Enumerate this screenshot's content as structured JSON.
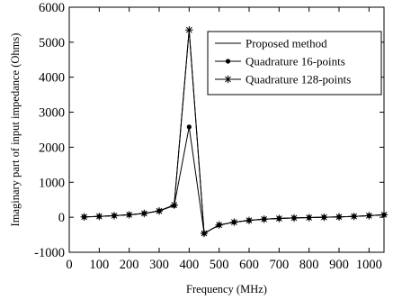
{
  "chart_data": {
    "type": "line",
    "xlabel": "Frequency (MHz)",
    "ylabel": "Imaginary part of input impedance (Ohms)",
    "xlim": [
      0,
      1050
    ],
    "ylim": [
      -1000,
      6000
    ],
    "xticks": [
      0,
      100,
      200,
      300,
      400,
      500,
      600,
      700,
      800,
      900,
      1000
    ],
    "yticks": [
      -1000,
      0,
      1000,
      2000,
      3000,
      4000,
      5000,
      6000
    ],
    "xtick_labels": [
      "0",
      "100",
      "200",
      "300",
      "400",
      "500",
      "600",
      "700",
      "800",
      "900",
      "1000"
    ],
    "ytick_labels": [
      "-1000",
      "0",
      "1000",
      "2000",
      "3000",
      "4000",
      "5000",
      "6000"
    ],
    "grid": false,
    "legend_position": "top-right",
    "colors": {
      "line": "#000000",
      "axis": "#000000",
      "background": "#ffffff"
    },
    "x": [
      50,
      100,
      150,
      200,
      250,
      300,
      350,
      400,
      450,
      500,
      550,
      600,
      650,
      700,
      750,
      800,
      850,
      900,
      950,
      1000,
      1050
    ],
    "series": [
      {
        "name": "Proposed method",
        "marker": "none",
        "values": [
          10,
          25,
          45,
          70,
          110,
          180,
          350,
          5350,
          -460,
          -220,
          -140,
          -90,
          -55,
          -35,
          -20,
          -10,
          0,
          10,
          25,
          45,
          70
        ]
      },
      {
        "name": "Quadrature 16-points",
        "marker": "dot",
        "values": [
          10,
          25,
          45,
          70,
          110,
          180,
          330,
          2580,
          -460,
          -220,
          -140,
          -90,
          -55,
          -35,
          -20,
          -10,
          0,
          10,
          25,
          45,
          70
        ]
      },
      {
        "name": "Quadrature 128-points",
        "marker": "star",
        "values": [
          10,
          25,
          45,
          70,
          110,
          180,
          350,
          5350,
          -460,
          -220,
          -140,
          -90,
          -55,
          -35,
          -20,
          -10,
          0,
          10,
          25,
          45,
          70
        ]
      }
    ]
  }
}
